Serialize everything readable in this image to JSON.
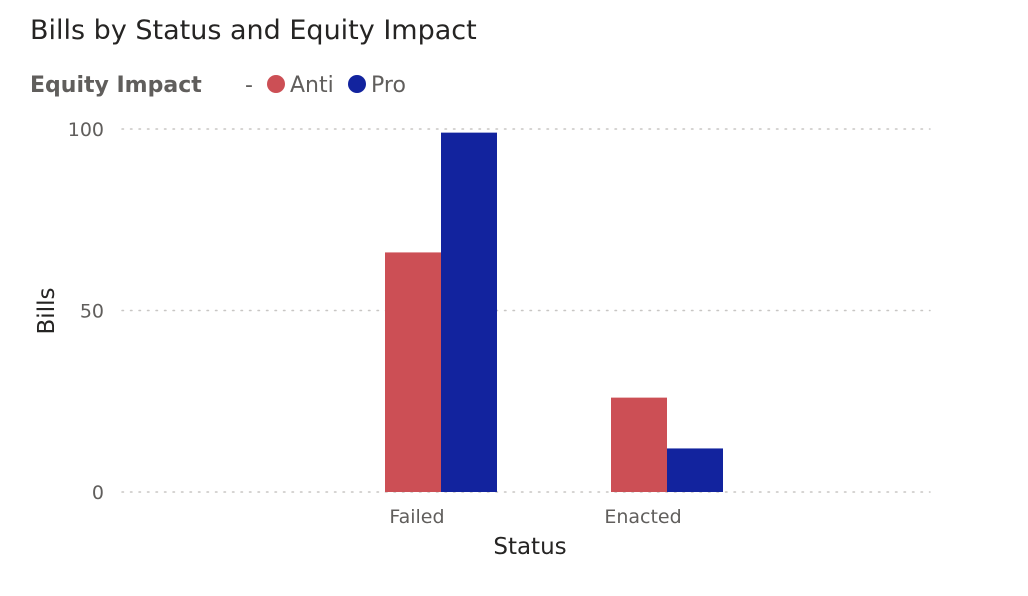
{
  "chart_data": {
    "type": "bar",
    "title": "Bills by Status and Equity Impact",
    "legend": {
      "title": "Equity Impact",
      "items": [
        {
          "label": "-"
        },
        {
          "label": "Anti",
          "color": "#cc4f55"
        },
        {
          "label": "Pro",
          "color": "#12239e"
        }
      ],
      "position": "top-left"
    },
    "categories": [
      "Failed",
      "Enacted"
    ],
    "series": [
      {
        "name": "Anti",
        "color": "#cc4f55",
        "values": [
          66,
          26
        ]
      },
      {
        "name": "Pro",
        "color": "#12239e",
        "values": [
          99,
          12
        ]
      }
    ],
    "xlabel": "Status",
    "ylabel": "Bills",
    "ylim": [
      0,
      100
    ],
    "yticks": [
      0,
      50,
      100
    ],
    "grid": true
  }
}
